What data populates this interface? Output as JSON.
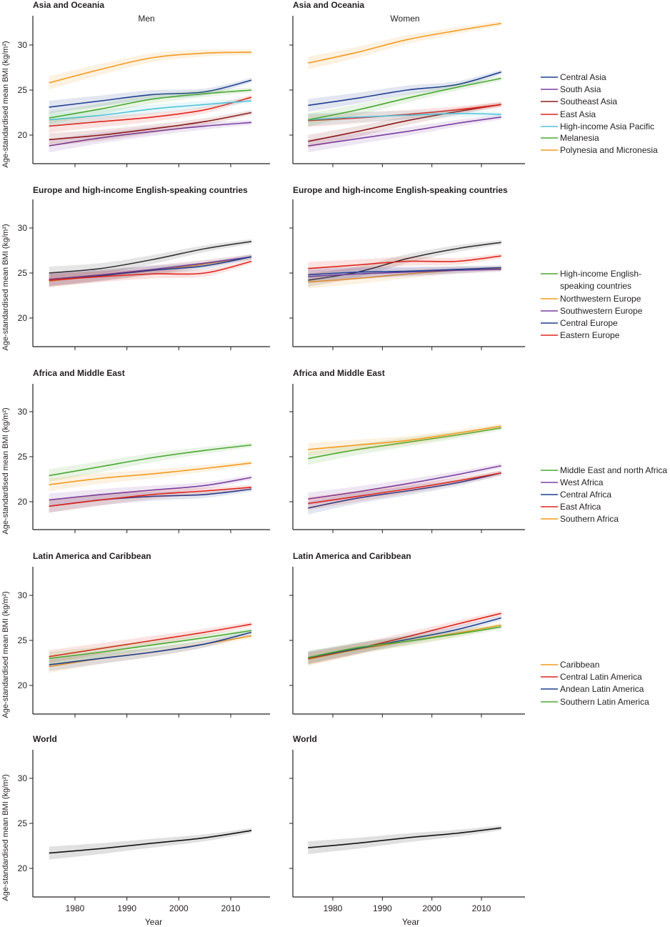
{
  "figure": {
    "ylabel": "Age-standardised mean BMI (kg/m²)",
    "xlabel": "Year",
    "sex_labels": [
      "Men",
      "Women"
    ]
  },
  "chart_data": [
    {
      "type": "line",
      "title": "Asia and Oceania",
      "x": [
        1975,
        1985,
        1995,
        2005,
        2014
      ],
      "xlim": [
        1972,
        2017
      ],
      "ylim": [
        17,
        33
      ],
      "xticks": [
        1980,
        1990,
        2000,
        2010
      ],
      "yticks": [
        20,
        25,
        30
      ],
      "xlabel": "Year",
      "ylabel": "Age-standardised mean BMI (kg/m²)",
      "legend_position": "right",
      "legend": [
        {
          "name": "Central Asia",
          "color": "#1f3f8f"
        },
        {
          "name": "South Asia",
          "color": "#7b3fa0"
        },
        {
          "name": "Southeast Asia",
          "color": "#8b1a1a"
        },
        {
          "name": "East Asia",
          "color": "#e0241b"
        },
        {
          "name": "High-income Asia Pacific",
          "color": "#4fc3d9"
        },
        {
          "name": "Melanesia",
          "color": "#4aa832"
        },
        {
          "name": "Polynesia and Micronesia",
          "color": "#f39a1e"
        }
      ],
      "panels": [
        {
          "sex": "Men",
          "series": [
            {
              "name": "Central Asia",
              "values": [
                23.1,
                23.8,
                24.5,
                24.8,
                26.1
              ]
            },
            {
              "name": "South Asia",
              "values": [
                18.8,
                19.7,
                20.4,
                21.0,
                21.4
              ]
            },
            {
              "name": "Southeast Asia",
              "values": [
                19.5,
                20.0,
                20.7,
                21.5,
                22.5
              ]
            },
            {
              "name": "East Asia",
              "values": [
                21.0,
                21.5,
                22.0,
                22.8,
                24.2
              ]
            },
            {
              "name": "High-income Asia Pacific",
              "values": [
                21.7,
                22.2,
                22.9,
                23.4,
                23.8
              ]
            },
            {
              "name": "Melanesia",
              "values": [
                21.9,
                22.9,
                24.0,
                24.6,
                25.0
              ]
            },
            {
              "name": "Polynesia and Micronesia",
              "values": [
                25.8,
                27.3,
                28.6,
                29.1,
                29.2
              ]
            }
          ]
        },
        {
          "sex": "Women",
          "series": [
            {
              "name": "Central Asia",
              "values": [
                23.3,
                24.1,
                25.0,
                25.6,
                27.0
              ]
            },
            {
              "name": "South Asia",
              "values": [
                18.8,
                19.6,
                20.4,
                21.3,
                22.0
              ]
            },
            {
              "name": "Southeast Asia",
              "values": [
                19.3,
                20.4,
                21.6,
                22.6,
                23.4
              ]
            },
            {
              "name": "East Asia",
              "values": [
                21.6,
                21.9,
                22.3,
                22.8,
                23.4
              ]
            },
            {
              "name": "High-income Asia Pacific",
              "values": [
                21.7,
                22.0,
                22.2,
                22.4,
                22.3
              ]
            },
            {
              "name": "Melanesia",
              "values": [
                21.7,
                22.8,
                24.1,
                25.3,
                26.3
              ]
            },
            {
              "name": "Polynesia and Micronesia",
              "values": [
                28.0,
                29.2,
                30.6,
                31.6,
                32.4
              ]
            }
          ]
        }
      ]
    },
    {
      "type": "line",
      "title": "Europe and high-income English-speaking countries",
      "x": [
        1975,
        1985,
        1995,
        2005,
        2014
      ],
      "xlim": [
        1972,
        2017
      ],
      "ylim": [
        17,
        33
      ],
      "xticks": [
        1980,
        1990,
        2000,
        2010
      ],
      "yticks": [
        20,
        25,
        30
      ],
      "xlabel": "Year",
      "ylabel": "Age-standardised mean BMI (kg/m²)",
      "legend_position": "right",
      "legend": [
        {
          "name": "High-income English-",
          "name2": "speaking countries",
          "color": "#4aa832"
        },
        {
          "name": "Northwestern Europe",
          "color": "#f39a1e"
        },
        {
          "name": "Southwestern Europe",
          "color": "#7b3fa0"
        },
        {
          "name": "Central Europe",
          "color": "#1f3f8f"
        },
        {
          "name": "Eastern Europe",
          "color": "#e0241b"
        }
      ],
      "panels": [
        {
          "sex": "Men",
          "series": [
            {
              "name": "High-income English-speaking countries",
              "values": [
                25.0,
                25.5,
                26.5,
                27.7,
                28.5
              ]
            },
            {
              "name": "Northwestern Europe",
              "values": [
                24.1,
                24.7,
                25.3,
                26.0,
                26.8
              ]
            },
            {
              "name": "Southwestern Europe",
              "values": [
                24.3,
                24.8,
                25.4,
                26.1,
                26.8
              ]
            },
            {
              "name": "Central Europe",
              "values": [
                24.2,
                24.7,
                25.3,
                25.8,
                26.8
              ]
            },
            {
              "name": "Eastern Europe",
              "values": [
                24.2,
                24.6,
                24.9,
                25.0,
                26.3
              ]
            }
          ]
        },
        {
          "sex": "Women",
          "series": [
            {
              "name": "High-income English-speaking countries",
              "values": [
                24.2,
                25.1,
                26.6,
                27.7,
                28.4
              ]
            },
            {
              "name": "Northwestern Europe",
              "values": [
                24.0,
                24.4,
                24.9,
                25.3,
                25.5
              ]
            },
            {
              "name": "Southwestern Europe",
              "values": [
                24.6,
                24.9,
                25.1,
                25.3,
                25.4
              ]
            },
            {
              "name": "Central Europe",
              "values": [
                24.8,
                25.1,
                25.2,
                25.4,
                25.6
              ]
            },
            {
              "name": "Eastern Europe",
              "values": [
                25.5,
                25.9,
                26.3,
                26.3,
                26.9
              ]
            }
          ]
        }
      ]
    },
    {
      "type": "line",
      "title": "Africa and Middle East",
      "x": [
        1975,
        1985,
        1995,
        2005,
        2014
      ],
      "xlim": [
        1972,
        2017
      ],
      "ylim": [
        17,
        33
      ],
      "xticks": [
        1980,
        1990,
        2000,
        2010
      ],
      "yticks": [
        20,
        25,
        30
      ],
      "xlabel": "Year",
      "ylabel": "Age-standardised mean BMI (kg/m²)",
      "legend_position": "right",
      "legend": [
        {
          "name": "Middle East and north Africa",
          "color": "#4aa832"
        },
        {
          "name": "West Africa",
          "color": "#7b3fa0"
        },
        {
          "name": "Central Africa",
          "color": "#1f3f8f"
        },
        {
          "name": "East Africa",
          "color": "#e0241b"
        },
        {
          "name": "Southern Africa",
          "color": "#f39a1e"
        }
      ],
      "panels": [
        {
          "sex": "Men",
          "series": [
            {
              "name": "Middle East and north Africa",
              "values": [
                22.9,
                23.9,
                24.9,
                25.7,
                26.3
              ]
            },
            {
              "name": "West Africa",
              "values": [
                20.2,
                20.8,
                21.3,
                21.8,
                22.7
              ]
            },
            {
              "name": "Central Africa",
              "values": [
                19.5,
                20.2,
                20.6,
                20.8,
                21.4
              ]
            },
            {
              "name": "East Africa",
              "values": [
                19.5,
                20.2,
                20.8,
                21.2,
                21.6
              ]
            },
            {
              "name": "Southern Africa",
              "values": [
                21.9,
                22.6,
                23.1,
                23.7,
                24.3
              ]
            }
          ]
        },
        {
          "sex": "Women",
          "series": [
            {
              "name": "Middle East and north Africa",
              "values": [
                24.8,
                25.8,
                26.6,
                27.4,
                28.2
              ]
            },
            {
              "name": "West Africa",
              "values": [
                20.3,
                21.1,
                22.0,
                23.0,
                24.0
              ]
            },
            {
              "name": "Central Africa",
              "values": [
                19.3,
                20.4,
                21.2,
                22.1,
                23.2
              ]
            },
            {
              "name": "East Africa",
              "values": [
                19.8,
                20.6,
                21.4,
                22.3,
                23.2
              ]
            },
            {
              "name": "Southern Africa",
              "values": [
                25.8,
                26.3,
                26.8,
                27.6,
                28.4
              ]
            }
          ]
        }
      ]
    },
    {
      "type": "line",
      "title": "Latin America and Caribbean",
      "x": [
        1975,
        1985,
        1995,
        2005,
        2014
      ],
      "xlim": [
        1972,
        2017
      ],
      "ylim": [
        17,
        33
      ],
      "xticks": [
        1980,
        1990,
        2000,
        2010
      ],
      "yticks": [
        20,
        25,
        30
      ],
      "xlabel": "Year",
      "ylabel": "Age-standardised mean BMI (kg/m²)",
      "legend_position": "right",
      "legend": [
        {
          "name": "Caribbean",
          "color": "#f39a1e"
        },
        {
          "name": "Central Latin America",
          "color": "#e0241b"
        },
        {
          "name": "Andean Latin America",
          "color": "#1f3f8f"
        },
        {
          "name": "Southern Latin America",
          "color": "#4aa832"
        }
      ],
      "panels": [
        {
          "sex": "Men",
          "series": [
            {
              "name": "Caribbean",
              "values": [
                22.1,
                23.0,
                23.7,
                24.6,
                25.5
              ]
            },
            {
              "name": "Central Latin America",
              "values": [
                23.2,
                24.1,
                25.0,
                25.9,
                26.8
              ]
            },
            {
              "name": "Andean Latin America",
              "values": [
                22.3,
                23.0,
                23.7,
                24.6,
                25.9
              ]
            },
            {
              "name": "Southern Latin America",
              "values": [
                23.0,
                23.7,
                24.5,
                25.3,
                26.1
              ]
            }
          ]
        },
        {
          "sex": "Women",
          "series": [
            {
              "name": "Caribbean",
              "values": [
                22.9,
                24.0,
                24.9,
                25.8,
                26.7
              ]
            },
            {
              "name": "Central Latin America",
              "values": [
                23.0,
                24.1,
                25.4,
                26.8,
                28.0
              ]
            },
            {
              "name": "Andean Latin America",
              "values": [
                23.1,
                24.1,
                25.1,
                26.2,
                27.5
              ]
            },
            {
              "name": "Southern Latin America",
              "values": [
                23.1,
                24.2,
                24.9,
                25.7,
                26.5
              ]
            }
          ]
        }
      ]
    },
    {
      "type": "line",
      "title": "World",
      "x": [
        1975,
        1985,
        1995,
        2005,
        2014
      ],
      "xlim": [
        1972,
        2017
      ],
      "ylim": [
        17,
        33
      ],
      "xticks": [
        1980,
        1990,
        2000,
        2010
      ],
      "yticks": [
        20,
        25,
        30
      ],
      "xlabel": "Year",
      "ylabel": "Age-standardised mean BMI (kg/m²)",
      "legend_position": "none",
      "legend": [],
      "panels": [
        {
          "sex": "Men",
          "series": [
            {
              "name": "World",
              "color": "#111111",
              "values": [
                21.7,
                22.2,
                22.8,
                23.4,
                24.2
              ]
            }
          ]
        },
        {
          "sex": "Women",
          "series": [
            {
              "name": "World",
              "color": "#111111",
              "values": [
                22.3,
                22.8,
                23.4,
                23.9,
                24.5
              ]
            }
          ]
        }
      ]
    }
  ]
}
